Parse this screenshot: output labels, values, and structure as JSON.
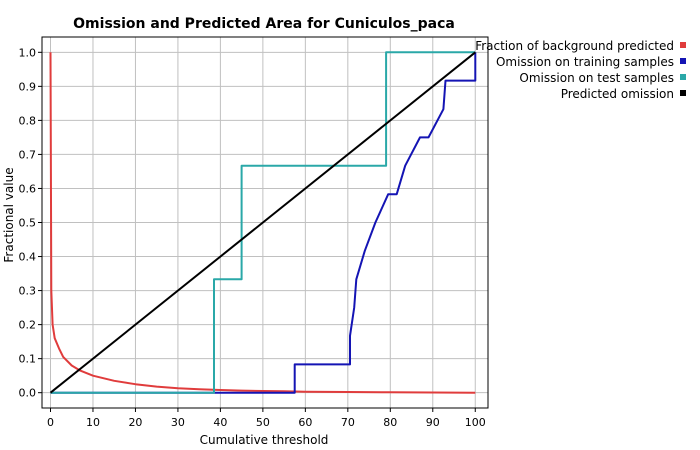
{
  "chart_data": {
    "type": "line",
    "title": "Omission and Predicted Area for Cuniculos_paca",
    "xlabel": "Cumulative threshold",
    "ylabel": "Fractional value",
    "xlim": [
      -2,
      103
    ],
    "ylim": [
      -0.045,
      1.045
    ],
    "xticks": [
      "0",
      "10",
      "20",
      "30",
      "40",
      "50",
      "60",
      "70",
      "80",
      "90",
      "100"
    ],
    "yticks": [
      "0.0",
      "0.1",
      "0.2",
      "0.3",
      "0.4",
      "0.5",
      "0.6",
      "0.7",
      "0.8",
      "0.9",
      "1.0"
    ],
    "grid": true,
    "legend_position": "right",
    "series": [
      {
        "name": "Fraction of background predicted",
        "color": "#e03c3c",
        "x": [
          0,
          0.2,
          0.5,
          1,
          2,
          3,
          5,
          7,
          10,
          15,
          20,
          25,
          30,
          35,
          40,
          45,
          50,
          55,
          60,
          70,
          80,
          90,
          100
        ],
        "y": [
          1.0,
          0.3,
          0.2,
          0.16,
          0.13,
          0.105,
          0.08,
          0.065,
          0.05,
          0.035,
          0.025,
          0.018,
          0.013,
          0.01,
          0.008,
          0.006,
          0.005,
          0.004,
          0.003,
          0.002,
          0.001,
          0.0005,
          0.0
        ]
      },
      {
        "name": "Omission on training samples",
        "color": "#1414b4",
        "x": [
          0,
          57.5,
          57.5,
          70.5,
          70.5,
          71.5,
          72,
          72,
          74,
          74,
          76.5,
          76.5,
          79.5,
          79.5,
          81.5,
          81.5,
          83.5,
          83.5,
          87,
          87,
          89,
          89,
          92.5,
          92.5,
          93,
          93,
          100,
          100
        ],
        "y": [
          0.0,
          0.0,
          0.083,
          0.083,
          0.167,
          0.25,
          0.333,
          0.333,
          0.417,
          0.417,
          0.5,
          0.5,
          0.583,
          0.583,
          0.583,
          0.583,
          0.667,
          0.667,
          0.75,
          0.75,
          0.75,
          0.75,
          0.833,
          0.833,
          0.917,
          0.917,
          0.917,
          1.0
        ]
      },
      {
        "name": "Omission on test samples",
        "color": "#2aa8a8",
        "x": [
          0,
          38.5,
          38.5,
          45,
          45,
          79,
          79,
          100
        ],
        "y": [
          0.0,
          0.0,
          0.333,
          0.333,
          0.667,
          0.667,
          1.0,
          1.0
        ]
      },
      {
        "name": "Predicted omission",
        "color": "#000000",
        "x": [
          0,
          100
        ],
        "y": [
          0.0,
          1.0
        ]
      }
    ]
  }
}
